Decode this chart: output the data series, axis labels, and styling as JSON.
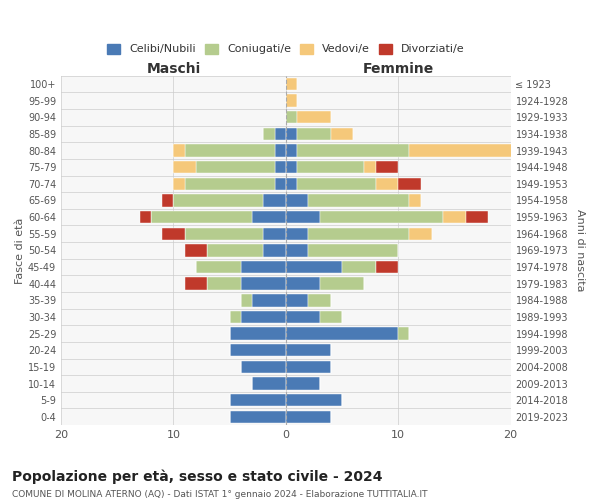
{
  "age_groups": [
    "0-4",
    "5-9",
    "10-14",
    "15-19",
    "20-24",
    "25-29",
    "30-34",
    "35-39",
    "40-44",
    "45-49",
    "50-54",
    "55-59",
    "60-64",
    "65-69",
    "70-74",
    "75-79",
    "80-84",
    "85-89",
    "90-94",
    "95-99",
    "100+"
  ],
  "birth_years": [
    "2019-2023",
    "2014-2018",
    "2009-2013",
    "2004-2008",
    "1999-2003",
    "1994-1998",
    "1989-1993",
    "1984-1988",
    "1979-1983",
    "1974-1978",
    "1969-1973",
    "1964-1968",
    "1959-1963",
    "1954-1958",
    "1949-1953",
    "1944-1948",
    "1939-1943",
    "1934-1938",
    "1929-1933",
    "1924-1928",
    "≤ 1923"
  ],
  "colors": {
    "celibi": "#4A7AB5",
    "coniugati": "#B5CC8E",
    "vedovi": "#F5C87A",
    "divorziati": "#C0392B"
  },
  "maschi": {
    "celibi": [
      5,
      5,
      3,
      4,
      5,
      5,
      4,
      3,
      4,
      4,
      2,
      2,
      3,
      2,
      1,
      1,
      1,
      1,
      0,
      0,
      0
    ],
    "coniugati": [
      0,
      0,
      0,
      0,
      0,
      0,
      1,
      1,
      3,
      4,
      5,
      7,
      9,
      8,
      8,
      7,
      8,
      1,
      0,
      0,
      0
    ],
    "vedovi": [
      0,
      0,
      0,
      0,
      0,
      0,
      0,
      0,
      0,
      0,
      0,
      0,
      0,
      0,
      1,
      2,
      1,
      0,
      0,
      0,
      0
    ],
    "divorziati": [
      0,
      0,
      0,
      0,
      0,
      0,
      0,
      0,
      2,
      0,
      2,
      2,
      1,
      1,
      0,
      0,
      0,
      0,
      0,
      0,
      0
    ]
  },
  "femmine": {
    "celibi": [
      4,
      5,
      3,
      4,
      4,
      10,
      3,
      2,
      3,
      5,
      2,
      2,
      3,
      2,
      1,
      1,
      1,
      1,
      0,
      0,
      0
    ],
    "coniugati": [
      0,
      0,
      0,
      0,
      0,
      1,
      2,
      2,
      4,
      3,
      8,
      9,
      11,
      9,
      7,
      6,
      10,
      3,
      1,
      0,
      0
    ],
    "vedovi": [
      0,
      0,
      0,
      0,
      0,
      0,
      0,
      0,
      0,
      0,
      0,
      2,
      2,
      1,
      2,
      1,
      10,
      2,
      3,
      1,
      1
    ],
    "divorziati": [
      0,
      0,
      0,
      0,
      0,
      0,
      0,
      0,
      0,
      2,
      0,
      0,
      2,
      0,
      2,
      2,
      0,
      0,
      0,
      0,
      0
    ]
  },
  "xlim": 20,
  "title": "Popolazione per età, sesso e stato civile - 2024",
  "subtitle": "COMUNE DI MOLINA ATERNO (AQ) - Dati ISTAT 1° gennaio 2024 - Elaborazione TUTTITALIA.IT",
  "ylabel_left": "Fasce di età",
  "ylabel_right": "Anni di nascita",
  "xlabel_maschi": "Maschi",
  "xlabel_femmine": "Femmine",
  "legend_labels": [
    "Celibi/Nubili",
    "Coniugati/e",
    "Vedovi/e",
    "Divorziati/e"
  ],
  "bg_color": "#ffffff",
  "grid_color": "#cccccc"
}
